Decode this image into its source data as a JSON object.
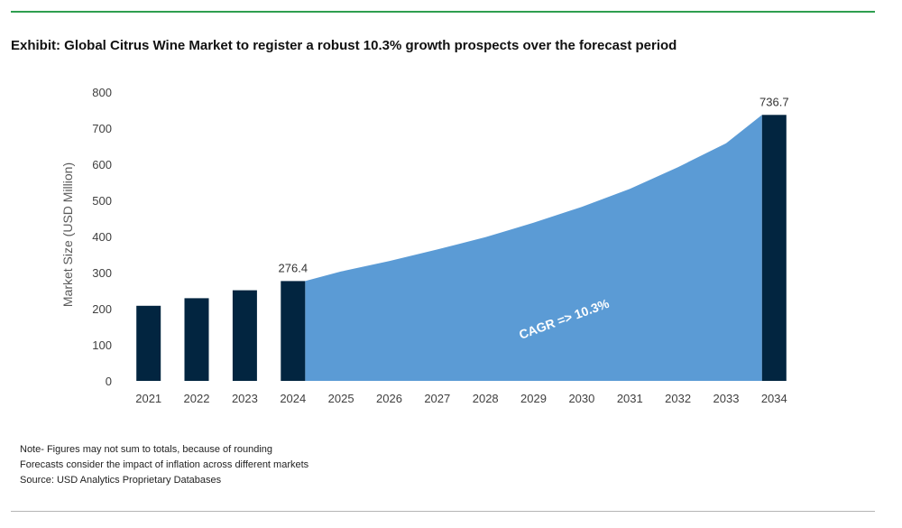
{
  "title": "Exhibit: Global Citrus Wine Market to register a robust 10.3% growth prospects over the forecast period",
  "notes": [
    "Note- Figures may not sum to totals, because of rounding",
    "Forecasts consider the impact of inflation across different markets",
    "Source: USD Analytics Proprietary Databases"
  ],
  "colors": {
    "bar": "#022540",
    "area": "#5b9bd5",
    "accent_line": "#2e9e4f",
    "cagr_text": "#ffffff"
  },
  "chart_data": {
    "type": "bar",
    "ylabel": "Market Size (USD Million)",
    "ylim": [
      0,
      800
    ],
    "yticks": [
      0,
      100,
      200,
      300,
      400,
      500,
      600,
      700,
      800
    ],
    "grid": false,
    "categories": [
      "2021",
      "2022",
      "2023",
      "2024",
      "2025",
      "2026",
      "2027",
      "2028",
      "2029",
      "2030",
      "2031",
      "2032",
      "2033",
      "2034"
    ],
    "bars": [
      {
        "category": "2021",
        "value": 208
      },
      {
        "category": "2022",
        "value": 229
      },
      {
        "category": "2023",
        "value": 251
      },
      {
        "category": "2024",
        "value": 276.4,
        "label": "276.4"
      },
      {
        "category": "2034",
        "value": 736.7,
        "label": "736.7"
      }
    ],
    "area": {
      "categories": [
        "2024",
        "2025",
        "2026",
        "2027",
        "2028",
        "2029",
        "2030",
        "2031",
        "2032",
        "2033",
        "2034"
      ],
      "values": [
        276.4,
        303,
        332,
        364,
        398,
        438,
        482,
        532,
        592,
        658,
        736.7
      ]
    },
    "annotation": "CAGR => 10.3%"
  }
}
